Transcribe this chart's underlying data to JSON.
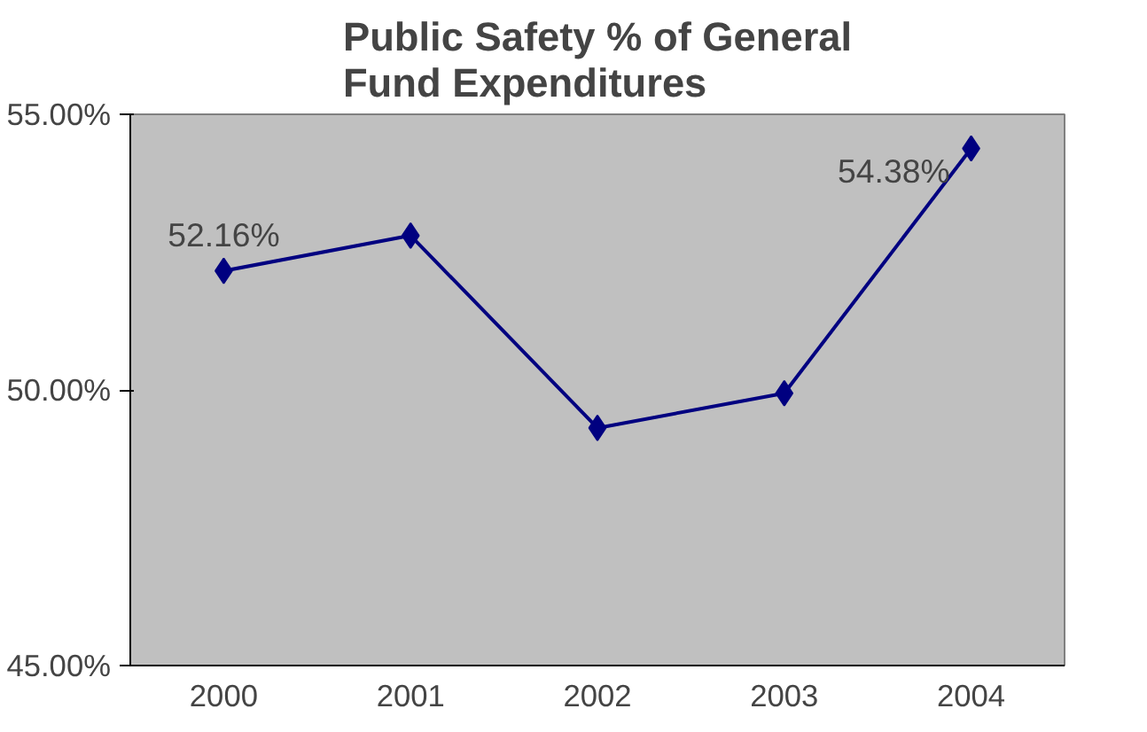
{
  "chart_data": {
    "type": "line",
    "title": "Public Safety % of General\nFund Expenditures",
    "categories": [
      "2000",
      "2001",
      "2002",
      "2003",
      "2004"
    ],
    "series": [
      {
        "color": "#000080",
        "values": [
          52.16,
          52.8,
          49.31,
          49.94,
          54.38
        ],
        "value_labels": [
          "52.16%",
          null,
          null,
          null,
          "54.38%"
        ]
      }
    ],
    "ylim": [
      45,
      55
    ],
    "yticks": [
      {
        "value": 45,
        "label": "45.00%"
      },
      {
        "value": 50,
        "label": "50.00%"
      },
      {
        "value": 55,
        "label": "55.00%"
      }
    ],
    "marker": "diamond",
    "line_style": "solid",
    "grid": false
  }
}
